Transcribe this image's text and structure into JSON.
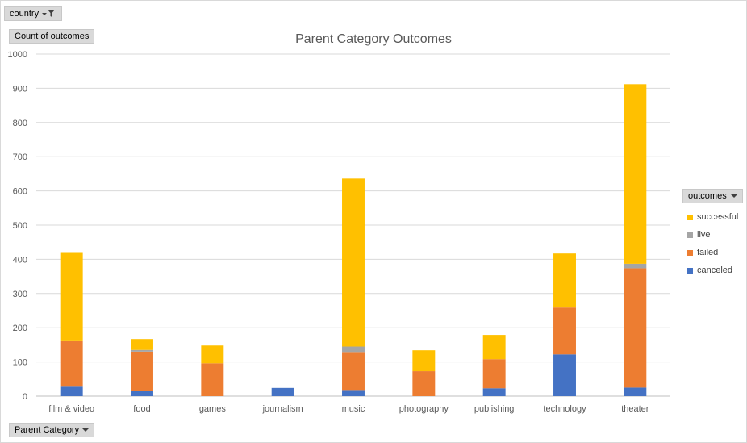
{
  "filters": {
    "country_label": "country",
    "count_label": "Count of outcomes",
    "category_label": "Parent Category",
    "outcomes_label": "outcomes"
  },
  "chart_data": {
    "type": "bar",
    "stacked": true,
    "title": "Parent Category Outcomes",
    "xlabel": "",
    "ylabel": "",
    "ylim": [
      0,
      1000
    ],
    "yticks": [
      0,
      100,
      200,
      300,
      400,
      500,
      600,
      700,
      800,
      900,
      1000
    ],
    "grid": true,
    "legend_position": "right",
    "categories": [
      "film & video",
      "food",
      "games",
      "journalism",
      "music",
      "photography",
      "publishing",
      "technology",
      "theater"
    ],
    "series": [
      {
        "name": "canceled",
        "color": "#4472c4",
        "values": [
          30,
          15,
          0,
          24,
          18,
          0,
          23,
          122,
          25
        ]
      },
      {
        "name": "failed",
        "color": "#ed7d31",
        "values": [
          133,
          115,
          96,
          0,
          111,
          73,
          85,
          137,
          349
        ]
      },
      {
        "name": "live",
        "color": "#a5a5a5",
        "values": [
          0,
          5,
          0,
          0,
          16,
          0,
          0,
          0,
          13
        ]
      },
      {
        "name": "successful",
        "color": "#ffc000",
        "values": [
          258,
          32,
          52,
          0,
          491,
          61,
          71,
          158,
          525
        ]
      }
    ],
    "legend_order": [
      "successful",
      "live",
      "failed",
      "canceled"
    ]
  }
}
